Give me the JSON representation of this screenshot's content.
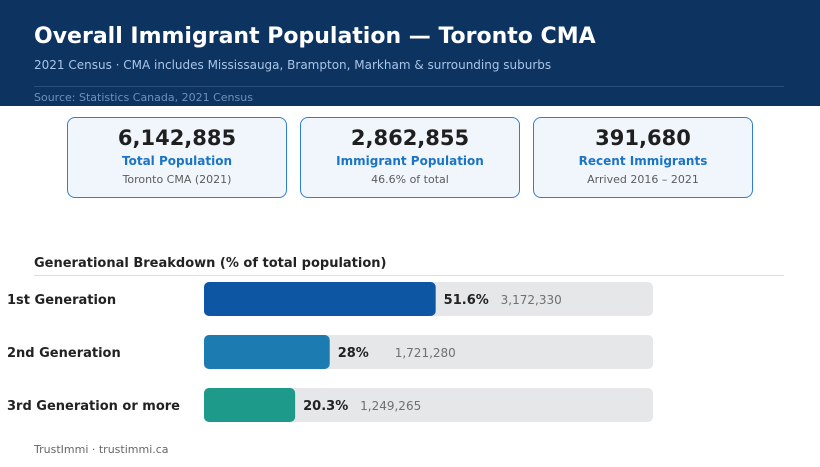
{
  "header": {
    "title": "Overall Immigrant Population — Toronto CMA",
    "subtitle": "2021 Census · CMA includes Mississauga, Brampton, Markham & surrounding suburbs",
    "source": "Source: Statistics Canada, 2021 Census"
  },
  "cards": [
    {
      "value": "6,142,885",
      "label": "Total Population",
      "note": "Toronto CMA (2021)"
    },
    {
      "value": "2,862,855",
      "label": "Immigrant Population",
      "note": "46.6% of total"
    },
    {
      "value": "391,680",
      "label": "Recent Immigrants",
      "note": "Arrived 2016 – 2021"
    }
  ],
  "section": {
    "title": "Generational Breakdown (% of total population)"
  },
  "chart_data": {
    "type": "bar",
    "orientation": "horizontal",
    "categories": [
      "1st Generation",
      "2nd Generation",
      "3rd Generation or more"
    ],
    "values": [
      51.6,
      28,
      20.3
    ],
    "value_labels": [
      "51.6%",
      "28%",
      "20.3%"
    ],
    "counts": [
      "3,172,330",
      "1,721,280",
      "1,249,265"
    ],
    "xlim": [
      0,
      100
    ],
    "colors": [
      "#0d56a4",
      "#1c7bb0",
      "#1e9a8a"
    ],
    "track_color": "#e6e7e9",
    "grid": false
  },
  "footer": {
    "text": "TrustImmi · trustimmi.ca"
  }
}
